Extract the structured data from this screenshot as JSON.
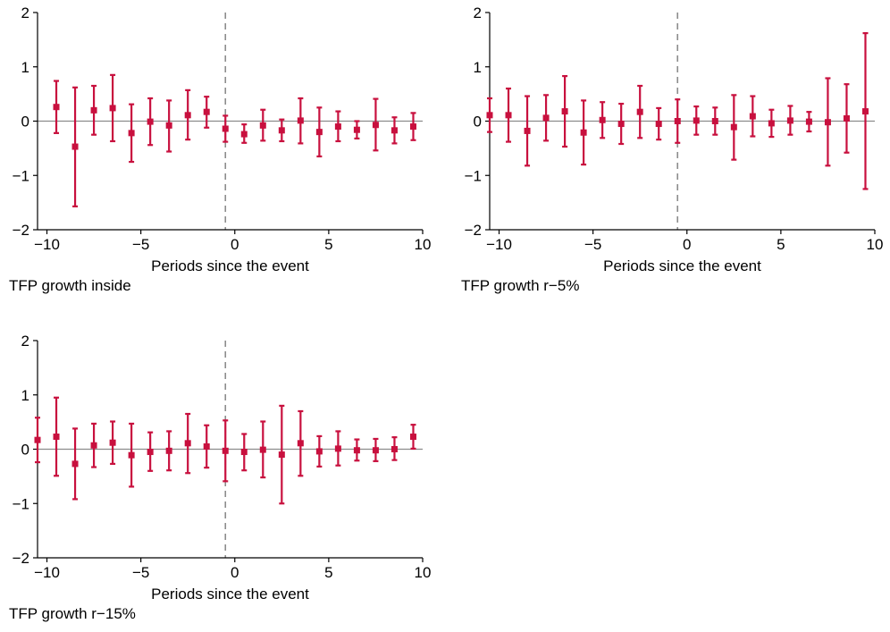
{
  "colors": {
    "marker": "#c8103e",
    "zero_line": "#8c8c8c",
    "event_line": "#8c8c8c",
    "axis": "#000000"
  },
  "chart_data": [
    {
      "type": "scatter",
      "subtitle": "TFP growth inside",
      "xlabel": "Periods since the event",
      "ylabel": "",
      "xlim": [
        -10.5,
        10
      ],
      "ylim": [
        -2,
        2
      ],
      "xticks": [
        -10,
        -5,
        0,
        5,
        10
      ],
      "yticks": [
        -2,
        -1,
        0,
        1,
        2
      ],
      "event_line_x": -0.5,
      "x": [
        -9.5,
        -8.5,
        -7.5,
        -6.5,
        -5.5,
        -4.5,
        -3.5,
        -2.5,
        -1.5,
        -0.5,
        0.5,
        1.5,
        2.5,
        3.5,
        4.5,
        5.5,
        6.5,
        7.5,
        8.5,
        9.5
      ],
      "estimate": [
        0.26,
        -0.47,
        0.2,
        0.24,
        -0.22,
        -0.01,
        -0.08,
        0.11,
        0.17,
        -0.14,
        -0.24,
        -0.08,
        -0.17,
        0.01,
        -0.2,
        -0.1,
        -0.16,
        -0.07,
        -0.17,
        -0.1
      ],
      "ci_low": [
        -0.22,
        -1.57,
        -0.25,
        -0.37,
        -0.75,
        -0.44,
        -0.56,
        -0.34,
        -0.12,
        -0.38,
        -0.4,
        -0.36,
        -0.37,
        -0.41,
        -0.65,
        -0.37,
        -0.32,
        -0.54,
        -0.41,
        -0.35
      ],
      "ci_high": [
        0.74,
        0.62,
        0.65,
        0.85,
        0.31,
        0.42,
        0.38,
        0.57,
        0.45,
        0.1,
        -0.06,
        0.21,
        0.03,
        0.42,
        0.25,
        0.18,
        0.0,
        0.41,
        0.07,
        0.15
      ]
    },
    {
      "type": "scatter",
      "subtitle": "TFP growth r−5%",
      "xlabel": "Periods since the event",
      "ylabel": "",
      "xlim": [
        -10.5,
        10
      ],
      "ylim": [
        -2,
        2
      ],
      "xticks": [
        -10,
        -5,
        0,
        5,
        10
      ],
      "yticks": [
        -2,
        -1,
        0,
        1,
        2
      ],
      "event_line_x": -0.5,
      "x": [
        -10.5,
        -9.5,
        -8.5,
        -7.5,
        -6.5,
        -5.5,
        -4.5,
        -3.5,
        -2.5,
        -1.5,
        -0.5,
        0.5,
        1.5,
        2.5,
        3.5,
        4.5,
        5.5,
        6.5,
        7.5,
        8.5,
        9.5
      ],
      "estimate": [
        0.11,
        0.11,
        -0.18,
        0.06,
        0.18,
        -0.21,
        0.02,
        -0.05,
        0.17,
        -0.05,
        0.0,
        0.01,
        0.0,
        -0.11,
        0.09,
        -0.04,
        0.01,
        -0.01,
        -0.02,
        0.05,
        0.18
      ],
      "ci_low": [
        -0.2,
        -0.38,
        -0.82,
        -0.36,
        -0.47,
        -0.8,
        -0.31,
        -0.42,
        -0.31,
        -0.34,
        -0.4,
        -0.25,
        -0.25,
        -0.71,
        -0.28,
        -0.29,
        -0.25,
        -0.19,
        -0.82,
        -0.58,
        -1.25
      ],
      "ci_high": [
        0.42,
        0.6,
        0.46,
        0.48,
        0.83,
        0.38,
        0.35,
        0.32,
        0.65,
        0.24,
        0.4,
        0.27,
        0.25,
        0.48,
        0.46,
        0.21,
        0.28,
        0.17,
        0.79,
        0.68,
        1.62
      ]
    },
    {
      "type": "scatter",
      "subtitle": "TFP growth r−15%",
      "xlabel": "Periods since the event",
      "ylabel": "",
      "xlim": [
        -10.5,
        10
      ],
      "ylim": [
        -2,
        2
      ],
      "xticks": [
        -10,
        -5,
        0,
        5,
        10
      ],
      "yticks": [
        -2,
        -1,
        0,
        1,
        2
      ],
      "event_line_x": -0.5,
      "x": [
        -10.5,
        -9.5,
        -8.5,
        -7.5,
        -6.5,
        -5.5,
        -4.5,
        -3.5,
        -2.5,
        -1.5,
        -0.5,
        0.5,
        1.5,
        2.5,
        3.5,
        4.5,
        5.5,
        6.5,
        7.5,
        8.5,
        9.5
      ],
      "estimate": [
        0.17,
        0.23,
        -0.27,
        0.07,
        0.12,
        -0.11,
        -0.05,
        -0.03,
        0.11,
        0.05,
        -0.03,
        -0.05,
        -0.01,
        -0.1,
        0.11,
        -0.04,
        0.01,
        -0.02,
        -0.02,
        0.0,
        0.23
      ],
      "ci_low": [
        -0.24,
        -0.49,
        -0.92,
        -0.33,
        -0.27,
        -0.69,
        -0.4,
        -0.39,
        -0.44,
        -0.34,
        -0.59,
        -0.39,
        -0.52,
        -1.0,
        -0.49,
        -0.32,
        -0.3,
        -0.21,
        -0.22,
        -0.2,
        0.01
      ],
      "ci_high": [
        0.58,
        0.95,
        0.38,
        0.47,
        0.51,
        0.47,
        0.31,
        0.33,
        0.65,
        0.44,
        0.53,
        0.28,
        0.51,
        0.8,
        0.7,
        0.24,
        0.33,
        0.18,
        0.19,
        0.22,
        0.45
      ]
    }
  ]
}
